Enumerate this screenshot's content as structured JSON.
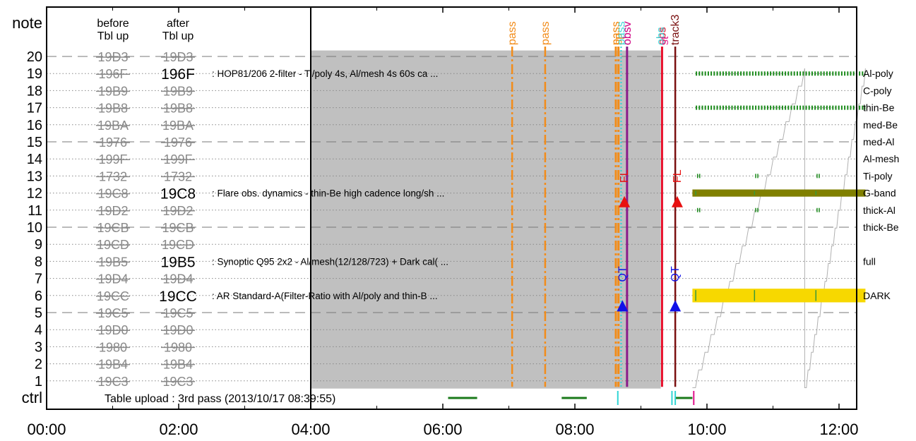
{
  "chart_data": {
    "type": "timeline",
    "x_ticks": [
      "00:00",
      "02:00",
      "04:00",
      "06:00",
      "08:00",
      "10:00",
      "12:00"
    ],
    "xlim_hours": [
      0,
      12.4
    ],
    "y_note_label": "note",
    "y_ctrl_label": "ctrl",
    "col_before_header": [
      "before",
      "Tbl up"
    ],
    "col_after_header": [
      "after",
      "Tbl up"
    ],
    "rows": [
      {
        "n": "20",
        "before": "19D3",
        "after": "19D3",
        "after_struck": true,
        "desc": "",
        "filter": "",
        "line": "dash"
      },
      {
        "n": "19",
        "before": "196F",
        "after": "196F",
        "after_struck": false,
        "desc": ": HOP81/206 2-filter - Ti/poly 4s, Al/mesh 4s 60s ca ...",
        "filter": "Al-poly",
        "line": "dot"
      },
      {
        "n": "18",
        "before": "19B9",
        "after": "19B9",
        "after_struck": true,
        "desc": "",
        "filter": "C-poly",
        "line": "dot"
      },
      {
        "n": "17",
        "before": "19B8",
        "after": "19B8",
        "after_struck": true,
        "desc": "",
        "filter": "thin-Be",
        "line": "dot"
      },
      {
        "n": "16",
        "before": "19BA",
        "after": "19BA",
        "after_struck": true,
        "desc": "",
        "filter": "med-Be",
        "line": "dot"
      },
      {
        "n": "15",
        "before": "1976",
        "after": "1976",
        "after_struck": true,
        "desc": "",
        "filter": "med-Al",
        "line": "dash"
      },
      {
        "n": "14",
        "before": "199F",
        "after": "199F",
        "after_struck": true,
        "desc": "",
        "filter": "Al-mesh",
        "line": "dot"
      },
      {
        "n": "13",
        "before": "1732",
        "after": "1732",
        "after_struck": true,
        "desc": "",
        "filter": "Ti-poly",
        "line": "dot"
      },
      {
        "n": "12",
        "before": "19C8",
        "after": "19C8",
        "after_struck": false,
        "desc": ": Flare obs. dynamics - thin-Be high cadence long/sh ...",
        "filter": "G-band",
        "line": "dot"
      },
      {
        "n": "11",
        "before": "19D2",
        "after": "19D2",
        "after_struck": true,
        "desc": "",
        "filter": "thick-Al",
        "line": "dot"
      },
      {
        "n": "10",
        "before": "19CB",
        "after": "19CB",
        "after_struck": true,
        "desc": "",
        "filter": "thick-Be",
        "line": "dash"
      },
      {
        "n": "9",
        "before": "19CD",
        "after": "19CD",
        "after_struck": true,
        "desc": "",
        "filter": "",
        "line": "dot"
      },
      {
        "n": "8",
        "before": "19B5",
        "after": "19B5",
        "after_struck": false,
        "desc": ": Synoptic Q95 2x2 - Al/mesh(12/128/723) + Dark cal( ...",
        "filter": "full",
        "line": "dot"
      },
      {
        "n": "7",
        "before": "19D4",
        "after": "19D4",
        "after_struck": true,
        "desc": "",
        "filter": "",
        "line": "dot"
      },
      {
        "n": "6",
        "before": "19CC",
        "after": "19CC",
        "after_struck": false,
        "desc": ": AR Standard-A(Filter-Ratio with Al/poly and thin-B ...",
        "filter": "DARK",
        "line": "dot"
      },
      {
        "n": "5",
        "before": "19C5",
        "after": "19C5",
        "after_struck": true,
        "desc": "",
        "filter": "",
        "line": "dash"
      },
      {
        "n": "4",
        "before": "19D0",
        "after": "19D0",
        "after_struck": true,
        "desc": "",
        "filter": "",
        "line": "dot"
      },
      {
        "n": "3",
        "before": "1980",
        "after": "1980",
        "after_struck": true,
        "desc": "",
        "filter": "",
        "line": "dot"
      },
      {
        "n": "2",
        "before": "19B4",
        "after": "19B4",
        "after_struck": true,
        "desc": "",
        "filter": "",
        "line": "dot"
      },
      {
        "n": "1",
        "before": "19C3",
        "after": "19C3",
        "after_struck": true,
        "desc": "",
        "filter": "",
        "line": "dot"
      }
    ],
    "ctrl_text": "Table upload : 3rd pass (2013/10/17 08:39:55)",
    "shaded_range_hours": [
      4.0,
      9.3
    ],
    "shaded_row_range": [
      0.55,
      20.35
    ],
    "vlines": [
      {
        "t": 7.05,
        "label": "pass",
        "color": "#f28c1a",
        "style": "dashdot",
        "width": 2.5
      },
      {
        "t": 7.55,
        "label": "pass",
        "color": "#f28c1a",
        "style": "dashdot",
        "width": 2.5
      },
      {
        "t": 8.62,
        "label": "pass",
        "color": "#f28c1a",
        "style": "dashdot",
        "width": 3
      },
      {
        "t": 8.66,
        "label": "sp",
        "color": "#f28c1a",
        "style": "dashdot",
        "width": 3
      },
      {
        "t": 8.7,
        "label": "",
        "color": "#30d5d5",
        "style": "dot",
        "width": 2
      },
      {
        "t": 8.79,
        "label": "obsv",
        "color": "#8a1a8a",
        "style": "solid",
        "width": 3
      },
      {
        "t": 9.32,
        "label": "obs",
        "color": "#e8102c",
        "style": "solid",
        "width": 3
      },
      {
        "t": 9.52,
        "label": "track3",
        "color": "#7a1010",
        "style": "solid",
        "width": 2.5
      }
    ],
    "vline_extra_labels": [
      {
        "t": 8.62,
        "text": "pass",
        "color": "#f28c1a"
      },
      {
        "t": 8.7,
        "text": "pass",
        "color": "#30d5d5"
      },
      {
        "t": 8.79,
        "text": "obsv",
        "color": "#e0108a"
      },
      {
        "t": 9.3,
        "text": "obs",
        "color": "#30d5d5"
      },
      {
        "t": 9.36,
        "text": "st",
        "color": "#e0108a"
      }
    ],
    "markers": [
      {
        "t": 8.75,
        "row": 11.5,
        "shape": "triangle",
        "color": "#e81010",
        "label": "FL",
        "label_row": 12.6
      },
      {
        "t": 9.55,
        "row": 11.5,
        "shape": "triangle",
        "color": "#e81010",
        "label": "FL",
        "label_row": 12.6
      },
      {
        "t": 8.72,
        "row": 5.4,
        "shape": "triangle",
        "color": "#1010e8",
        "label": "QT",
        "label_row": 6.8
      },
      {
        "t": 9.52,
        "row": 5.4,
        "shape": "triangle",
        "color": "#1010e8",
        "label": "QT",
        "label_row": 6.8
      }
    ],
    "filter_bars": [
      {
        "row": 12,
        "t0": 9.78,
        "t1": 12.4,
        "color": "#808000",
        "height": 0.42
      },
      {
        "row": 6,
        "t0": 9.78,
        "t1": 12.4,
        "color": "#f7d800",
        "height": 0.8
      }
    ],
    "tick_rows": [
      {
        "row": 19,
        "dense": true
      },
      {
        "row": 17,
        "dense": true
      },
      {
        "row": 13,
        "dense": false
      },
      {
        "row": 11,
        "dense": false
      }
    ],
    "ctrl_segments": [
      {
        "t0": 6.08,
        "t1": 6.52,
        "color": "#1a7a1a"
      },
      {
        "t0": 7.8,
        "t1": 8.18,
        "color": "#1a7a1a"
      },
      {
        "t0": 9.52,
        "t1": 9.78,
        "color": "#1a7a1a"
      }
    ],
    "ctrl_ticks": [
      {
        "t": 8.65,
        "color": "#30d5d5"
      },
      {
        "t": 9.47,
        "color": "#30d5d5"
      },
      {
        "t": 9.52,
        "color": "#30d5d5"
      },
      {
        "t": 9.8,
        "color": "#e0108a"
      }
    ]
  }
}
